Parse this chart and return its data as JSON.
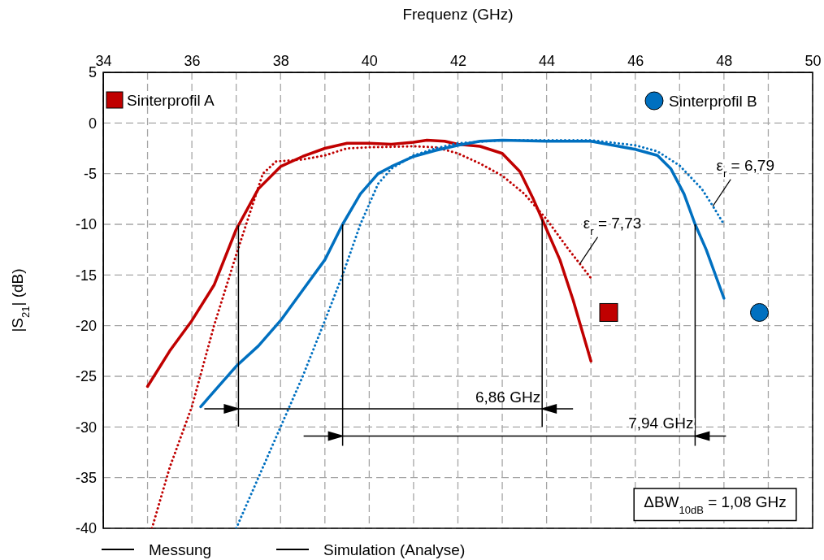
{
  "chart_data": {
    "type": "line",
    "xlabel": "Frequenz (GHz)",
    "ylabel": "|S$_{21}$| (dB)",
    "xlim": [
      34,
      50
    ],
    "xticks": [
      34,
      {
        "value": 35,
        "label": null
      },
      36,
      {
        "value": 37,
        "label": null
      },
      38,
      {
        "value": 39,
        "label": null
      },
      40,
      {
        "value": 41,
        "label": null
      },
      42,
      {
        "value": 43,
        "label": null
      },
      44,
      {
        "value": 45,
        "label": null
      },
      46,
      {
        "value": 47,
        "label": null
      },
      48,
      {
        "value": 49,
        "label": null
      },
      50
    ],
    "ylim": [
      -40,
      5
    ],
    "yticks": [
      -40,
      -35,
      -30,
      -25,
      -20,
      -15,
      -10,
      -5,
      0,
      5
    ],
    "grid": true,
    "series": [
      {
        "color": "#c00000",
        "line_style": "solid",
        "x": [
          35,
          35.5,
          36,
          36.5,
          37,
          37.5,
          38,
          38.5,
          39,
          39.5,
          40,
          40.5,
          41,
          41.3,
          41.7,
          42,
          42.5,
          43,
          43.4,
          43.7,
          44,
          44.3,
          44.6,
          45
        ],
        "values": [
          -26,
          -22.5,
          -19.5,
          -16,
          -10.5,
          -6.5,
          -4.3,
          -3.3,
          -2.5,
          -2,
          -2,
          -2.1,
          -1.9,
          -1.7,
          -1.8,
          -2.1,
          -2.3,
          -3,
          -4.8,
          -7.5,
          -10.5,
          -13.5,
          -17.5,
          -23.5
        ]
      },
      {
        "color": "#c00000",
        "line_style": "dotted",
        "x": [
          35.1,
          35.5,
          36,
          36.5,
          37,
          37.3,
          37.6,
          37.9,
          38.5,
          39,
          39.5,
          40,
          41,
          41.5,
          42,
          42.5,
          43,
          43.5,
          44,
          44.5,
          44.75,
          45
        ],
        "values": [
          -40,
          -34,
          -28,
          -20,
          -13,
          -9,
          -5,
          -3.8,
          -3.6,
          -3.2,
          -2.5,
          -2.4,
          -2.3,
          -2.4,
          -3,
          -4,
          -5.2,
          -7,
          -9.5,
          -12.5,
          -13.9,
          -15.3
        ]
      },
      {
        "color": "#0070c0",
        "line_style": "solid",
        "x": [
          36.2,
          36.5,
          37,
          37.5,
          38,
          38.5,
          39,
          39.4,
          39.8,
          40.2,
          40.5,
          41,
          41.5,
          42,
          42.5,
          43,
          44,
          45,
          45.5,
          46,
          46.5,
          46.8,
          47.1,
          47.35,
          47.6,
          48
        ],
        "values": [
          -28,
          -26.5,
          -24,
          -22,
          -19.5,
          -16.5,
          -13.5,
          -10,
          -7,
          -5,
          -4.3,
          -3.3,
          -2.7,
          -2.2,
          -1.8,
          -1.7,
          -1.8,
          -1.8,
          -2.2,
          -2.6,
          -3.2,
          -4.5,
          -7,
          -10,
          -12.5,
          -17.3
        ]
      },
      {
        "color": "#0070c0",
        "line_style": "dotted",
        "x": [
          37,
          37.5,
          38,
          38.5,
          39,
          39.4,
          39.8,
          40.2,
          40.5,
          41,
          41.5,
          42,
          43,
          44,
          45,
          46,
          46.5,
          47,
          47.5,
          47.75,
          48
        ],
        "values": [
          -40,
          -35,
          -30,
          -25,
          -19.5,
          -15,
          -10,
          -6,
          -4.5,
          -3.2,
          -2.5,
          -2,
          -1.7,
          -1.7,
          -1.7,
          -2.2,
          -2.8,
          -4.2,
          -6.5,
          -8.2,
          -10
        ]
      }
    ],
    "ref_lines": [
      {
        "axis": "x",
        "value": 37.05
      },
      {
        "axis": "x",
        "value": 43.9
      },
      {
        "axis": "x",
        "value": 39.4
      },
      {
        "axis": "x",
        "value": 47.35
      }
    ],
    "annotations": [
      {
        "text": "6,86 GHz",
        "x": 43.9,
        "y": -28.2
      },
      {
        "text": "7,94 GHz",
        "x": 47.35,
        "y": -30.9
      },
      {
        "text": "ε$_{r}$ = 7,73",
        "x": 44.75,
        "y": -13.9
      },
      {
        "text": "ε$_{r}$ = 6,79",
        "x": 47.75,
        "y": -8.2
      },
      "ΔBW$_{10dB}$ = 1,08 GHz",
      "Sinterprofil A",
      "Sinterprofil B",
      "Messung",
      "Simulation (Analyse)"
    ]
  }
}
